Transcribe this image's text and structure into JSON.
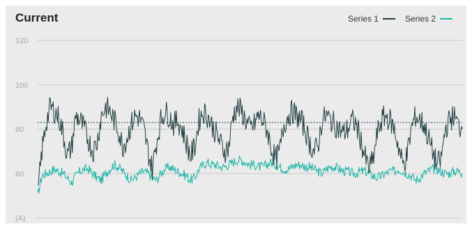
{
  "chart_data": {
    "type": "line",
    "title": "Current",
    "unit_label": "(A)",
    "ylim": [
      40,
      120
    ],
    "yticks": [
      60,
      80,
      100,
      120
    ],
    "grid": true,
    "legend_position": "top-right",
    "reference_line": {
      "y": 83,
      "style": "dotted"
    },
    "x": [
      0,
      1,
      2,
      3,
      4,
      5,
      6,
      7,
      8,
      9,
      10,
      11,
      12,
      13,
      14,
      15,
      16,
      17,
      18,
      19,
      20,
      21,
      22,
      23,
      24,
      25,
      26,
      27,
      28,
      29,
      30,
      31,
      32,
      33,
      34,
      35,
      36,
      37,
      38,
      39,
      40,
      41,
      42,
      43,
      44,
      45,
      46,
      47,
      48,
      49,
      50,
      51,
      52,
      53,
      54,
      55,
      56,
      57,
      58,
      59,
      60,
      61,
      62,
      63,
      64,
      65,
      66,
      67,
      68,
      69,
      70,
      71,
      72,
      73,
      74,
      75,
      76,
      77,
      78,
      79,
      80,
      81,
      82,
      83,
      84,
      85,
      86,
      87,
      88,
      89,
      90,
      91,
      92,
      93,
      94,
      95,
      96,
      97,
      98,
      99,
      100
    ],
    "series": [
      {
        "name": "Series 1",
        "color": "#1f3d3f",
        "values": [
          50,
          70,
          83,
          90,
          88,
          85,
          78,
          68,
          72,
          86,
          84,
          80,
          75,
          70,
          74,
          86,
          90,
          88,
          84,
          80,
          72,
          76,
          82,
          86,
          85,
          80,
          70,
          62,
          74,
          84,
          88,
          86,
          82,
          84,
          80,
          74,
          68,
          72,
          84,
          88,
          86,
          82,
          78,
          74,
          70,
          72,
          86,
          90,
          88,
          84,
          80,
          82,
          86,
          84,
          80,
          72,
          66,
          70,
          82,
          86,
          88,
          86,
          84,
          80,
          74,
          70,
          72,
          84,
          86,
          84,
          82,
          80,
          78,
          80,
          84,
          82,
          76,
          68,
          62,
          66,
          78,
          84,
          86,
          84,
          80,
          72,
          64,
          68,
          80,
          86,
          84,
          82,
          76,
          70,
          64,
          66,
          80,
          84,
          86,
          82,
          80
        ]
      },
      {
        "name": "Series 2",
        "color": "#17b5a6",
        "values": [
          50,
          59,
          60,
          61,
          62,
          61,
          60,
          58,
          56,
          59,
          61,
          62,
          62,
          60,
          58,
          57,
          60,
          62,
          64,
          63,
          61,
          59,
          57,
          58,
          60,
          61,
          60,
          58,
          57,
          60,
          62,
          63,
          62,
          61,
          60,
          59,
          57,
          58,
          62,
          64,
          65,
          64,
          64,
          63,
          63,
          64,
          65,
          66,
          66,
          65,
          64,
          64,
          63,
          63,
          64,
          65,
          64,
          63,
          62,
          62,
          63,
          64,
          64,
          63,
          63,
          62,
          61,
          60,
          62,
          63,
          63,
          62,
          61,
          61,
          60,
          60,
          61,
          61,
          60,
          59,
          58,
          59,
          60,
          61,
          61,
          62,
          61,
          60,
          59,
          57,
          58,
          60,
          61,
          62,
          62,
          61,
          60,
          60,
          61,
          61,
          60
        ]
      }
    ]
  }
}
